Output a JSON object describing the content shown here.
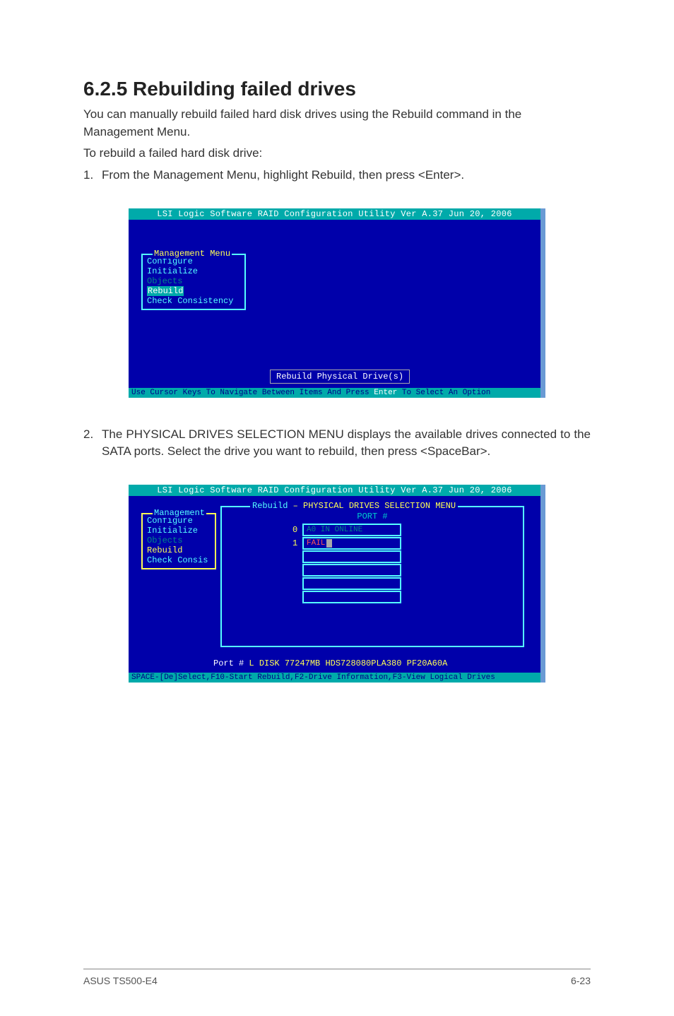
{
  "heading": "6.2.5 Rebuilding failed drives",
  "intro1": "You can manually rebuild failed hard disk drives using the Rebuild command in the Management Menu.",
  "intro2": "To rebuild a failed hard disk drive:",
  "steps": [
    {
      "num": "1.",
      "text": "From the Management Menu, highlight Rebuild, then press <Enter>."
    },
    {
      "num": "2.",
      "text": "The PHYSICAL DRIVES SELECTION MENU displays the available drives connected to the SATA ports. Select the drive you want to rebuild, then press <SpaceBar>."
    }
  ],
  "bios1": {
    "title": "LSI Logic Software RAID Configuration Utility Ver A.37 Jun 20, 2006",
    "menu_title": "Management Menu",
    "items": {
      "configure": "Configure",
      "initialize": "Initialize",
      "objects": "Objects",
      "rebuild": "Rebuild",
      "check": "Check Consistency"
    },
    "tooltip": "Rebuild Physical Drive(s)",
    "hint_pre": "Use Cursor Keys To Navigate Between Items And Press ",
    "hint_hl": "Enter",
    "hint_post": " To Select An Option"
  },
  "bios2": {
    "title": "LSI Logic Software RAID Configuration Utility Ver A.37 Jun 20, 2006",
    "menu_title": "Management",
    "items": {
      "configure": "Configure",
      "initialize": "Initialize",
      "objects": "Objects",
      "rebuild": "Rebuild",
      "check": "Check Consis"
    },
    "panel_title_a": "Rebuild",
    "panel_title_b": " – PHYSICAL DRIVES SELECTION MENU",
    "port_header": "PORT #",
    "drive0": {
      "idx": "0",
      "text": "A0 IN ONLINE"
    },
    "drive1": {
      "idx": "1",
      "text": "FAIL"
    },
    "portinfo": {
      "a": "Port #",
      "b": "  L DISK  77247MB    HDS728080PLA380    PF20A60A"
    },
    "hint": "SPACE-[De]Select,F10-Start Rebuild,F2-Drive Information,F3-View Logical Drives"
  },
  "footer": {
    "left": "ASUS TS500-E4",
    "right": "6-23"
  },
  "colors": {
    "bios_bg": "#0000aa",
    "bios_bar": "#00aaaa",
    "cyan": "#55ffff",
    "yellow": "#ffff55",
    "dimcyan": "#008888",
    "red": "#ff5555",
    "shadow": "#6a9ad4"
  }
}
